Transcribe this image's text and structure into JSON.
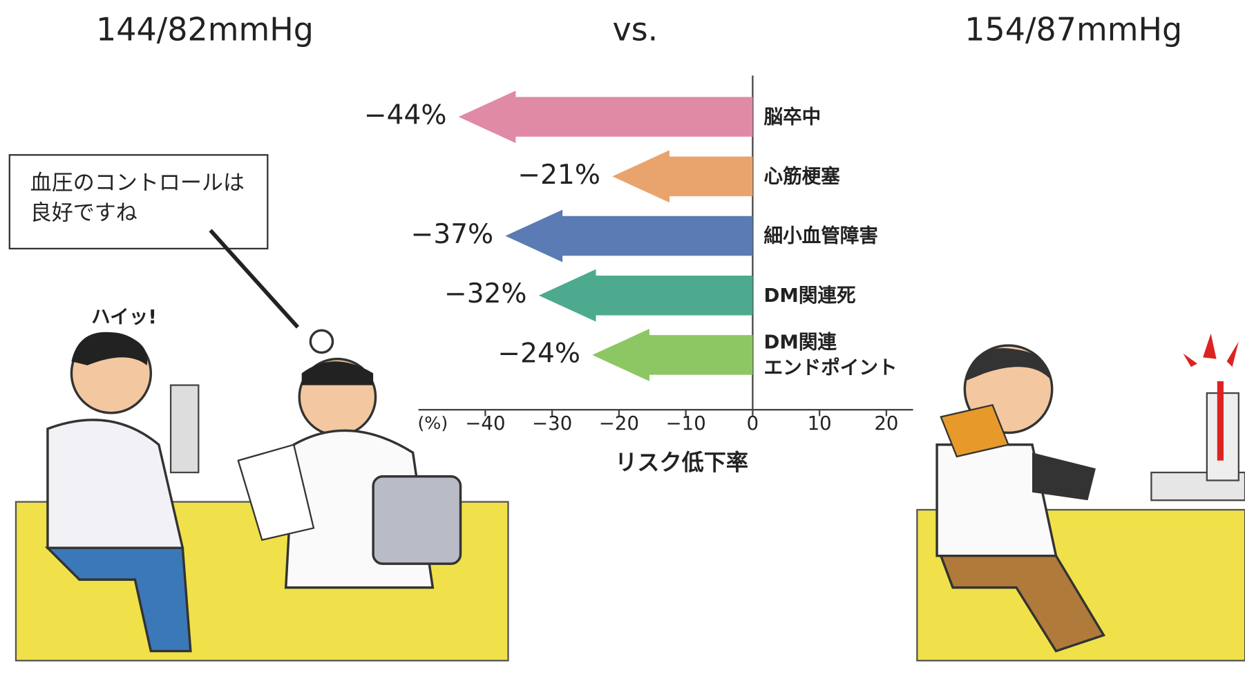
{
  "titles": {
    "left": "144/82mmHg",
    "center": "vs.",
    "right": "154/87mmHg"
  },
  "speech": {
    "doctor": "血圧のコントロールは\n良好ですね",
    "patient": "ハイッ!"
  },
  "chart_data": {
    "type": "bar",
    "orientation": "horizontal",
    "categories": [
      "脳卒中",
      "心筋梗塞",
      "細小血管障害",
      "DM関連死",
      "DM関連\nエンドポイント"
    ],
    "values": [
      -44,
      -21,
      -37,
      -32,
      -24
    ],
    "value_labels": [
      "−44%",
      "−21%",
      "−37%",
      "−32%",
      "−24%"
    ],
    "colors": [
      "#e08aa6",
      "#e9a46e",
      "#5a7bb4",
      "#4daa8e",
      "#8cc763"
    ],
    "xlim": [
      -50,
      24
    ],
    "xticks": [
      {
        "value": -40,
        "label": "−40"
      },
      {
        "value": -30,
        "label": "−30"
      },
      {
        "value": -20,
        "label": "−20"
      },
      {
        "value": -10,
        "label": "−10"
      },
      0,
      10,
      20
    ],
    "x_unit_label": "(%)",
    "xlabel": "リスク低下率"
  }
}
